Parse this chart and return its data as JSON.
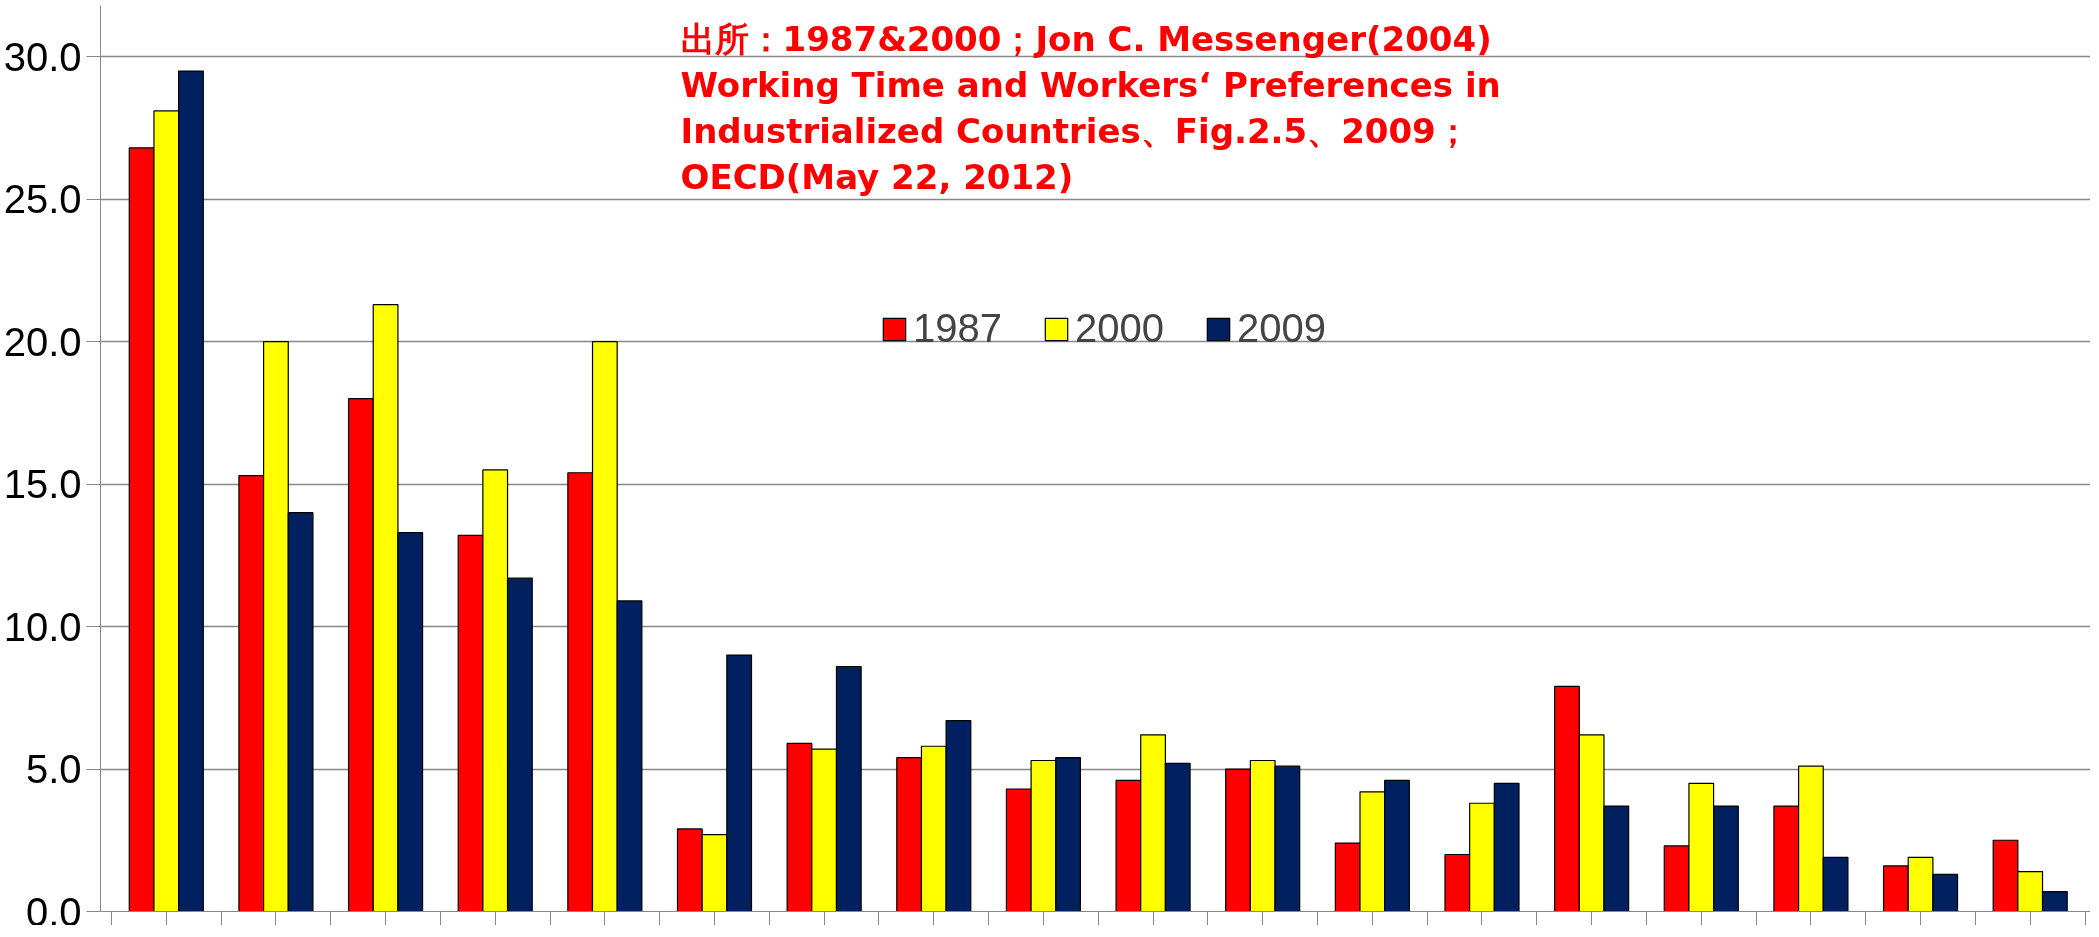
{
  "chart_data": {
    "type": "bar",
    "categories": [
      null,
      null,
      null,
      null,
      null,
      null,
      null,
      null,
      null,
      null,
      null,
      null,
      null,
      null,
      null,
      null,
      null,
      null
    ],
    "series": [
      {
        "name": "1987",
        "color": "#ff0000",
        "values": [
          26.8,
          15.3,
          18.0,
          13.2,
          15.4,
          2.9,
          5.9,
          5.4,
          4.3,
          4.6,
          5.0,
          2.4,
          2.0,
          7.9,
          2.3,
          3.7,
          1.6,
          2.5
        ]
      },
      {
        "name": "2000",
        "color": "#ffff00",
        "values": [
          28.1,
          20.0,
          21.3,
          15.5,
          20.0,
          2.7,
          5.7,
          5.8,
          5.3,
          6.2,
          5.3,
          4.2,
          3.8,
          6.2,
          4.5,
          5.1,
          1.9,
          1.4
        ]
      },
      {
        "name": "2009",
        "color": "#002060",
        "values": [
          29.5,
          14.0,
          13.3,
          11.7,
          10.9,
          9.0,
          8.6,
          6.7,
          5.4,
          5.2,
          5.1,
          4.6,
          4.5,
          3.7,
          3.7,
          1.9,
          1.3,
          0.7
        ]
      }
    ],
    "ylim": [
      0,
      31.8
    ],
    "yticks": [
      {
        "value": 0,
        "label": "0.0"
      },
      {
        "value": 5,
        "label": "5.0"
      },
      {
        "value": 10,
        "label": "10.0"
      },
      {
        "value": 15,
        "label": "15.0"
      },
      {
        "value": 20,
        "label": "20.0"
      },
      {
        "value": 25,
        "label": "25.0"
      },
      {
        "value": 30,
        "label": "30.0"
      }
    ],
    "grid": "y",
    "legend": "top",
    "annotations": [
      "出所：1987&2000；Jon C. Messenger(2004)\nWorking Time and Workers‘ Preferences in\nIndustrialized Countries、Fig.2.5、2009；\nOECD(May 22, 2012)"
    ]
  }
}
